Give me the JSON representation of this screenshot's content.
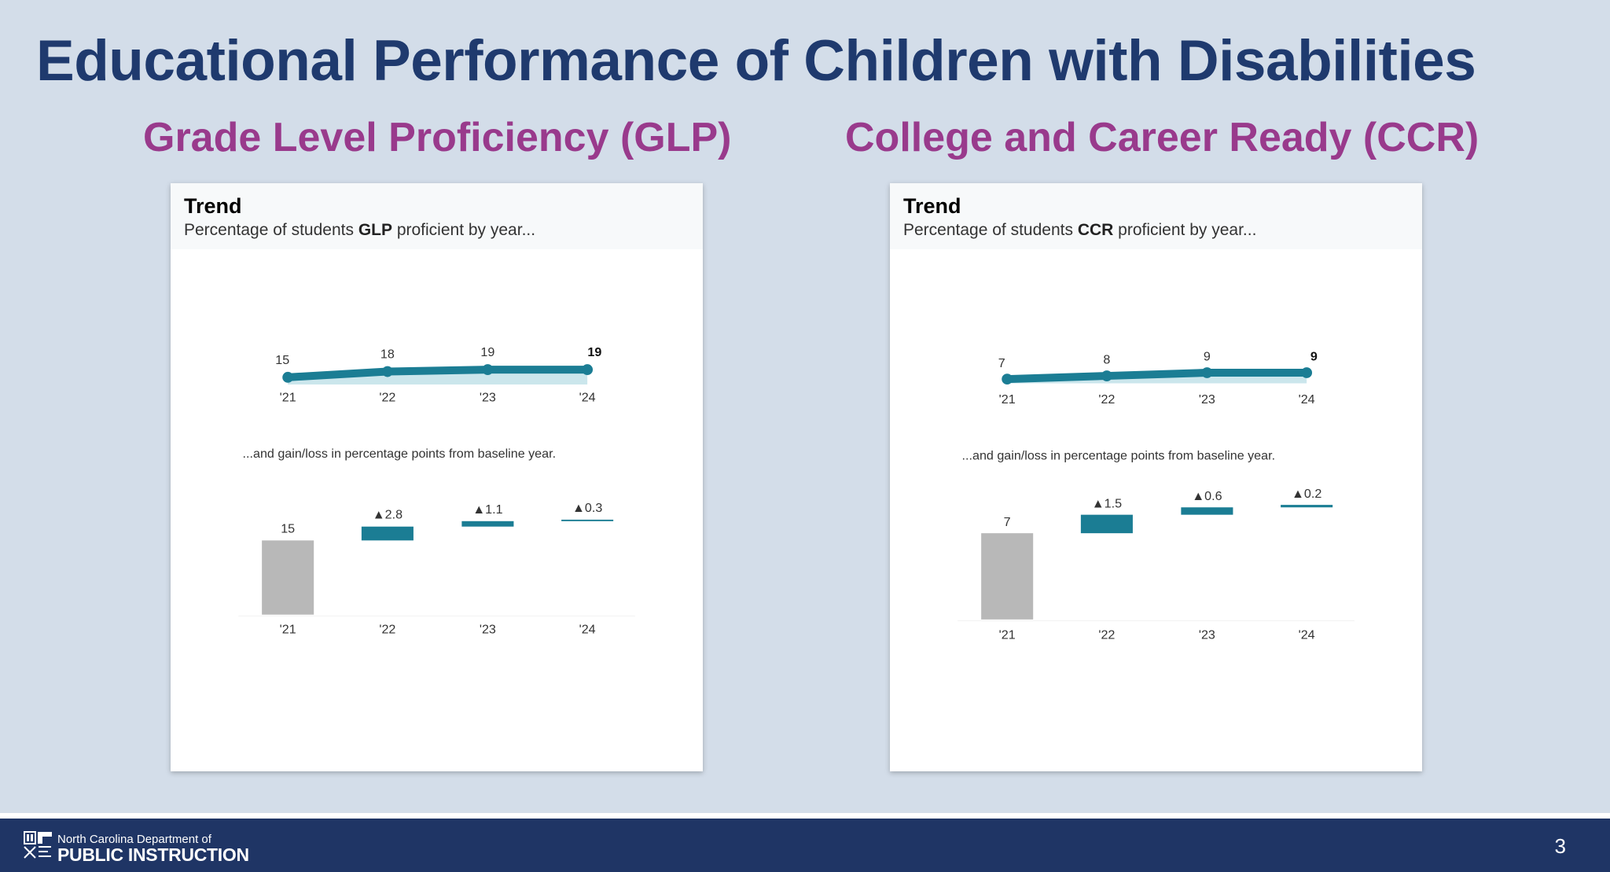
{
  "slide": {
    "title": "Educational Performance of Children with Disabilities",
    "page_number": "3"
  },
  "footer": {
    "org_line1": "North Carolina Department of",
    "org_line2": "PUBLIC INSTRUCTION"
  },
  "colors": {
    "title": "#1f3a6e",
    "heading": "#993a8c",
    "teal": "#1b7d94",
    "area": "#cbe6ec",
    "baseline_bar": "#b8b8b8",
    "footer": "#1f3565"
  },
  "panels": [
    {
      "heading": "Grade Level Proficiency (GLP)",
      "card_title": "Trend",
      "subtitle_pre": "Percentage of students ",
      "subtitle_bold": "GLP",
      "subtitle_post": " proficient by year...",
      "gain_caption": "...and gain/loss in percentage points from baseline year."
    },
    {
      "heading": "College and Career Ready (CCR)",
      "card_title": "Trend",
      "subtitle_pre": "Percentage of students ",
      "subtitle_bold": "CCR",
      "subtitle_post": " proficient by year...",
      "gain_caption": "...and gain/loss in percentage points from baseline year."
    }
  ],
  "chart_data": [
    {
      "type": "line",
      "title": "Trend",
      "subtitle": "Percentage of students GLP proficient by year...",
      "x": [
        "'21",
        "'22",
        "'23",
        "'24"
      ],
      "series": [
        {
          "values": [
            15,
            18,
            19,
            19
          ]
        }
      ],
      "labels": [
        "15",
        "18",
        "19",
        "19"
      ],
      "ylim": [
        0,
        100
      ],
      "area_fill": true,
      "grid": false
    },
    {
      "type": "bar",
      "subtitle": "...and gain/loss in percentage points from baseline year.",
      "variant": "waterfall",
      "categories": [
        "'21",
        "'22",
        "'23",
        "'24"
      ],
      "baseline": 15,
      "gains": [
        2.8,
        1.1,
        0.3
      ],
      "labels": [
        "15",
        "▲2.8",
        "▲1.1",
        "▲0.3"
      ],
      "grid": false
    },
    {
      "type": "line",
      "title": "Trend",
      "subtitle": "Percentage of students CCR proficient by year...",
      "x": [
        "'21",
        "'22",
        "'23",
        "'24"
      ],
      "series": [
        {
          "values": [
            7,
            8,
            9,
            9
          ]
        }
      ],
      "labels": [
        "7",
        "8",
        "9",
        "9"
      ],
      "ylim": [
        0,
        100
      ],
      "area_fill": true,
      "grid": false
    },
    {
      "type": "bar",
      "subtitle": "...and gain/loss in percentage points from baseline year.",
      "variant": "waterfall",
      "categories": [
        "'21",
        "'22",
        "'23",
        "'24"
      ],
      "baseline": 7,
      "gains": [
        1.5,
        0.6,
        0.2
      ],
      "labels": [
        "7",
        "▲1.5",
        "▲0.6",
        "▲0.2"
      ],
      "grid": false
    }
  ]
}
